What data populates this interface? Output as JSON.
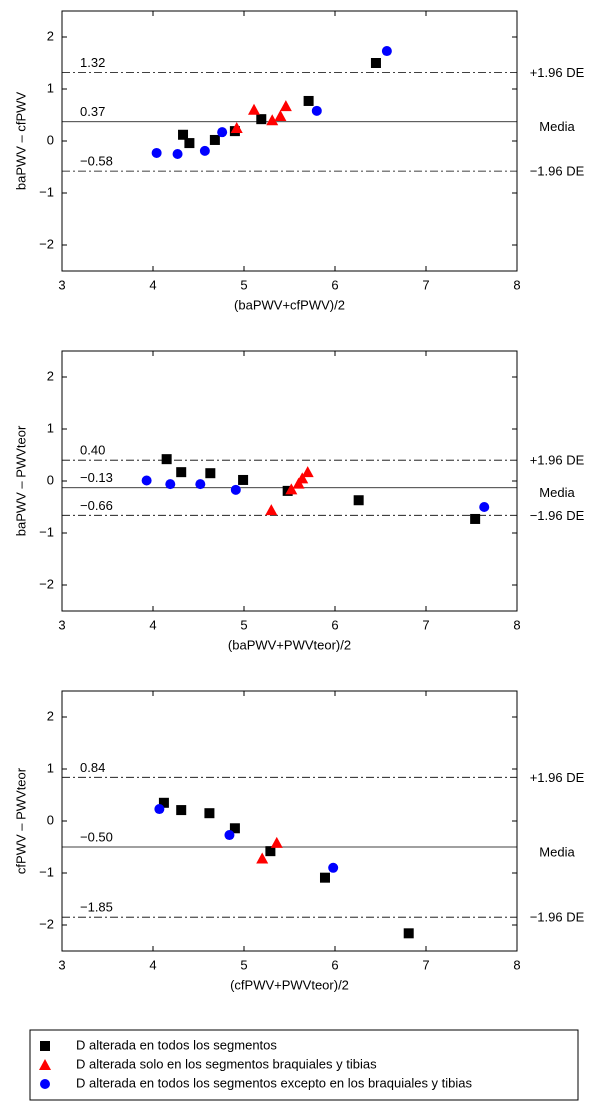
{
  "chart_data": [
    {
      "type": "scatter",
      "xlabel": "(baPWV+cfPWV)/2",
      "ylabel": "baPWV – cfPWV",
      "xlim": [
        3,
        8
      ],
      "ylim": [
        -2.5,
        2.5
      ],
      "xticks": [
        3,
        4,
        5,
        6,
        7,
        8
      ],
      "yticks": [
        {
          "value": -2,
          "label": "−2"
        },
        {
          "value": -1,
          "label": "−1"
        },
        0,
        1,
        2
      ],
      "ref_lines": [
        {
          "value": 1.32,
          "label": "1.32",
          "note": "+1.96 DE"
        },
        {
          "value": 0.37,
          "label": "0.37",
          "note": "Media"
        },
        {
          "value": -0.58,
          "label": "−0.58",
          "note": "−1.96 DE"
        }
      ],
      "series": [
        {
          "marker": "square",
          "color": "#000000",
          "x": [
            4.33,
            4.4,
            4.68,
            4.9,
            5.19,
            5.71,
            6.45
          ],
          "values": [
            0.12,
            -0.04,
            0.02,
            0.19,
            0.42,
            0.77,
            1.5
          ]
        },
        {
          "marker": "triangle",
          "color": "#ff0000",
          "x": [
            4.92,
            5.11,
            5.31,
            5.4,
            5.46
          ],
          "values": [
            0.25,
            0.6,
            0.4,
            0.48,
            0.67
          ]
        },
        {
          "marker": "circle",
          "color": "#0000ff",
          "x": [
            4.04,
            4.27,
            4.57,
            4.76,
            5.8,
            6.57
          ],
          "values": [
            -0.23,
            -0.25,
            -0.19,
            0.17,
            0.58,
            1.73
          ]
        }
      ]
    },
    {
      "type": "scatter",
      "xlabel": "(baPWV+PWVteor)/2",
      "ylabel": "baPWV – PWVteor",
      "xlim": [
        3,
        8
      ],
      "ylim": [
        -2.5,
        2.5
      ],
      "xticks": [
        3,
        4,
        5,
        6,
        7,
        8
      ],
      "yticks": [
        {
          "value": -2,
          "label": "−2"
        },
        {
          "value": -1,
          "label": "−1"
        },
        0,
        1,
        2
      ],
      "ref_lines": [
        {
          "value": 0.4,
          "label": "0.40",
          "note": "+1.96 DE"
        },
        {
          "value": -0.13,
          "label": "−0.13",
          "note": "Media"
        },
        {
          "value": -0.66,
          "label": "−0.66",
          "note": "−1.96 DE"
        }
      ],
      "series": [
        {
          "marker": "square",
          "color": "#000000",
          "x": [
            4.15,
            4.31,
            4.63,
            4.99,
            5.48,
            6.26,
            7.54
          ],
          "values": [
            0.42,
            0.17,
            0.15,
            0.02,
            -0.19,
            -0.37,
            -0.73
          ]
        },
        {
          "marker": "triangle",
          "color": "#ff0000",
          "x": [
            5.3,
            5.52,
            5.6,
            5.64,
            5.7
          ],
          "values": [
            -0.56,
            -0.16,
            -0.05,
            0.05,
            0.17
          ]
        },
        {
          "marker": "circle",
          "color": "#0000ff",
          "x": [
            3.93,
            4.19,
            4.52,
            4.91,
            7.64
          ],
          "values": [
            0.01,
            -0.06,
            -0.06,
            -0.17,
            -0.5
          ]
        }
      ]
    },
    {
      "type": "scatter",
      "xlabel": "(cfPWV+PWVteor)/2",
      "ylabel": "cfPWV – PWVteor",
      "xlim": [
        3,
        8
      ],
      "ylim": [
        -2.5,
        2.5
      ],
      "xticks": [
        3,
        4,
        5,
        6,
        7,
        8
      ],
      "yticks": [
        {
          "value": -2,
          "label": "−2"
        },
        {
          "value": -1,
          "label": "−1"
        },
        0,
        1,
        2
      ],
      "ref_lines": [
        {
          "value": 0.84,
          "label": "0.84",
          "note": "+1.96 DE"
        },
        {
          "value": -0.5,
          "label": "−0.50",
          "note": "Media"
        },
        {
          "value": -1.85,
          "label": "−1.85",
          "note": "−1.96 DE"
        }
      ],
      "series": [
        {
          "marker": "square",
          "color": "#000000",
          "x": [
            4.12,
            4.31,
            4.62,
            4.9,
            5.29,
            5.89,
            6.81
          ],
          "values": [
            0.35,
            0.21,
            0.15,
            -0.14,
            -0.58,
            -1.09,
            -2.16
          ]
        },
        {
          "marker": "triangle",
          "color": "#ff0000",
          "x": [
            5.2,
            5.36
          ],
          "values": [
            -0.72,
            -0.42
          ]
        },
        {
          "marker": "circle",
          "color": "#0000ff",
          "x": [
            4.07,
            4.84,
            5.98
          ],
          "values": [
            0.23,
            -0.27,
            -0.9
          ]
        }
      ]
    }
  ],
  "legend": {
    "entries": [
      {
        "label": "D alterada en todos los segmentos",
        "marker": "square",
        "color": "#000000"
      },
      {
        "label": "D alterada solo en los segmentos braquiales y tibias",
        "marker": "triangle",
        "color": "#ff0000"
      },
      {
        "label": "D alterada en todos los segmentos excepto en los braquiales y tibias",
        "marker": "circle",
        "color": "#0000ff"
      }
    ]
  }
}
